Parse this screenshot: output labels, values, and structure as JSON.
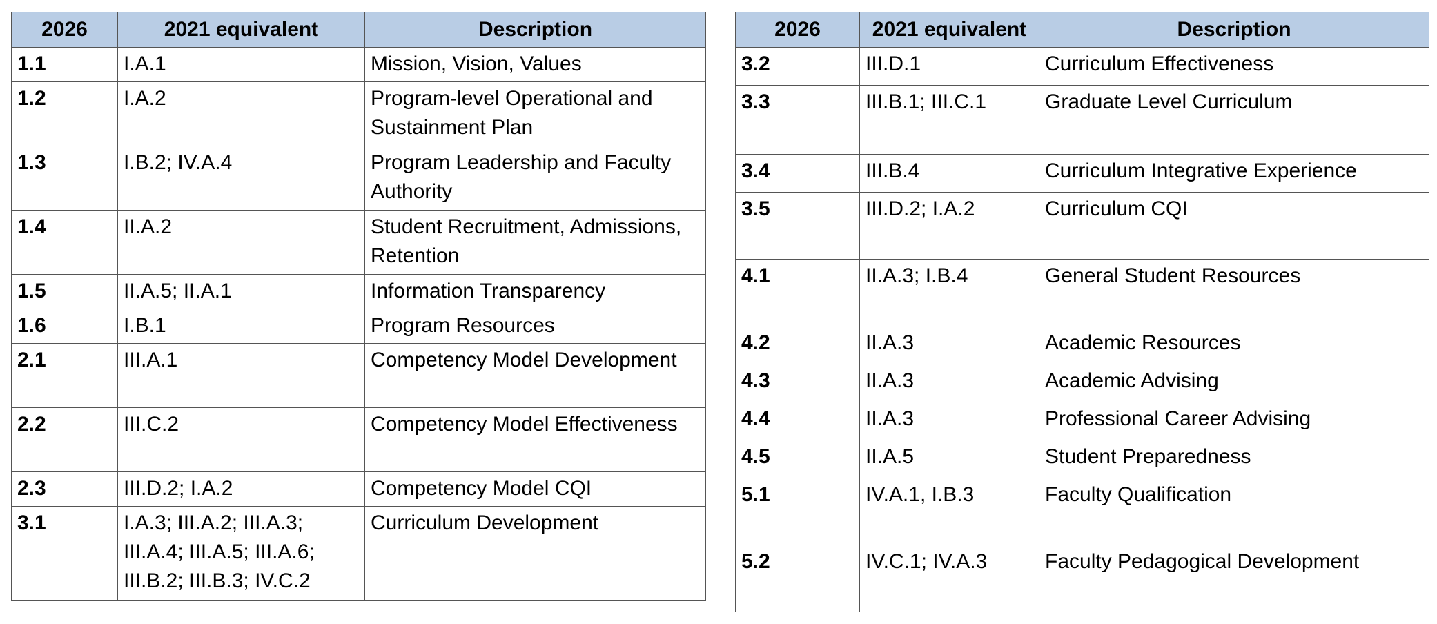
{
  "headers": {
    "col_2026": "2026",
    "col_2021": "2021 equivalent",
    "col_desc": "Description"
  },
  "left_table": {
    "rows": [
      {
        "code": "1.1",
        "equiv": "I.A.1",
        "desc": "Mission, Vision, Values"
      },
      {
        "code": "1.2",
        "equiv": "I.A.2",
        "desc": "Program-level Operational and Sustainment Plan"
      },
      {
        "code": "1.3",
        "equiv": "I.B.2; IV.A.4",
        "desc": "Program Leadership and Faculty Authority"
      },
      {
        "code": "1.4",
        "equiv": "II.A.2",
        "desc": "Student Recruitment, Admissions, Retention"
      },
      {
        "code": "1.5",
        "equiv": "II.A.5; II.A.1",
        "desc": "Information Transparency"
      },
      {
        "code": "1.6",
        "equiv": "I.B.1",
        "desc": "Program Resources"
      },
      {
        "code": "2.1",
        "equiv": "III.A.1",
        "desc": "Competency Model Development"
      },
      {
        "code": "2.2",
        "equiv": "III.C.2",
        "desc": "Competency Model Effectiveness"
      },
      {
        "code": "2.3",
        "equiv": "III.D.2; I.A.2",
        "desc": "Competency Model CQI"
      },
      {
        "code": "3.1",
        "equiv": "I.A.3; III.A.2; III.A.3; III.A.4; III.A.5; III.A.6; III.B.2; III.B.3; IV.C.2",
        "desc": "Curriculum Development"
      }
    ]
  },
  "right_table": {
    "rows": [
      {
        "code": "3.2",
        "equiv": "III.D.1",
        "desc": "Curriculum Effectiveness"
      },
      {
        "code": "3.3",
        "equiv": "III.B.1; III.C.1",
        "desc": "Graduate Level Curriculum"
      },
      {
        "code": "3.4",
        "equiv": "III.B.4",
        "desc": "Curriculum Integrative Experience"
      },
      {
        "code": "3.5",
        "equiv": "III.D.2; I.A.2",
        "desc": "Curriculum CQI"
      },
      {
        "code": "4.1",
        "equiv": "II.A.3; I.B.4",
        "desc": "General Student Resources"
      },
      {
        "code": "4.2",
        "equiv": "II.A.3",
        "desc": "Academic Resources"
      },
      {
        "code": "4.3",
        "equiv": "II.A.3",
        "desc": "Academic Advising"
      },
      {
        "code": "4.4",
        "equiv": "II.A.3",
        "desc": "Professional Career Advising"
      },
      {
        "code": "4.5",
        "equiv": "II.A.5",
        "desc": "Student Preparedness"
      },
      {
        "code": "5.1",
        "equiv": "IV.A.1, I.B.3",
        "desc": "Faculty Qualification"
      },
      {
        "code": "5.2",
        "equiv": "IV.C.1; IV.A.3",
        "desc": "Faculty Pedagogical Development"
      }
    ]
  }
}
